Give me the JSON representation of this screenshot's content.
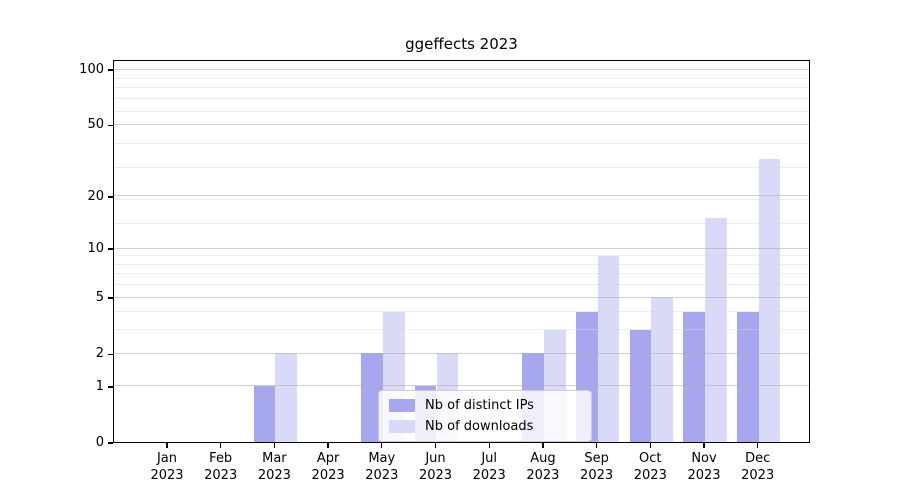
{
  "chart_data": {
    "type": "bar",
    "title": "ggeffects 2023",
    "xlabel": "",
    "ylabel": "",
    "year": "2023",
    "months": [
      "Jan",
      "Feb",
      "Mar",
      "Apr",
      "May",
      "Jun",
      "Jul",
      "Aug",
      "Sep",
      "Oct",
      "Nov",
      "Dec"
    ],
    "categories": [
      "Jan 2023",
      "Feb 2023",
      "Mar 2023",
      "Apr 2023",
      "May 2023",
      "Jun 2023",
      "Jul 2023",
      "Aug 2023",
      "Sep 2023",
      "Oct 2023",
      "Nov 2023",
      "Dec 2023"
    ],
    "series": [
      {
        "name": "Nb of distinct IPs",
        "color": "#a7a7ef",
        "values": [
          0,
          0,
          1,
          0,
          2,
          1,
          0,
          2,
          4,
          3,
          4,
          4
        ]
      },
      {
        "name": "Nb of downloads",
        "color": "#d9d9f8",
        "values": [
          0,
          0,
          2,
          0,
          4,
          2,
          0,
          3,
          9,
          5,
          15,
          32
        ]
      }
    ],
    "y_axis": {
      "scale": "log1p",
      "limits": [
        0,
        100
      ],
      "major_ticks": [
        0,
        1,
        2,
        5,
        10,
        20,
        50,
        100
      ],
      "minor_gridlines": [
        3,
        4,
        6,
        7,
        8,
        9,
        14,
        19,
        29,
        39,
        59,
        69,
        79,
        89
      ]
    },
    "grid": true,
    "legend_position": "bottom-center"
  }
}
